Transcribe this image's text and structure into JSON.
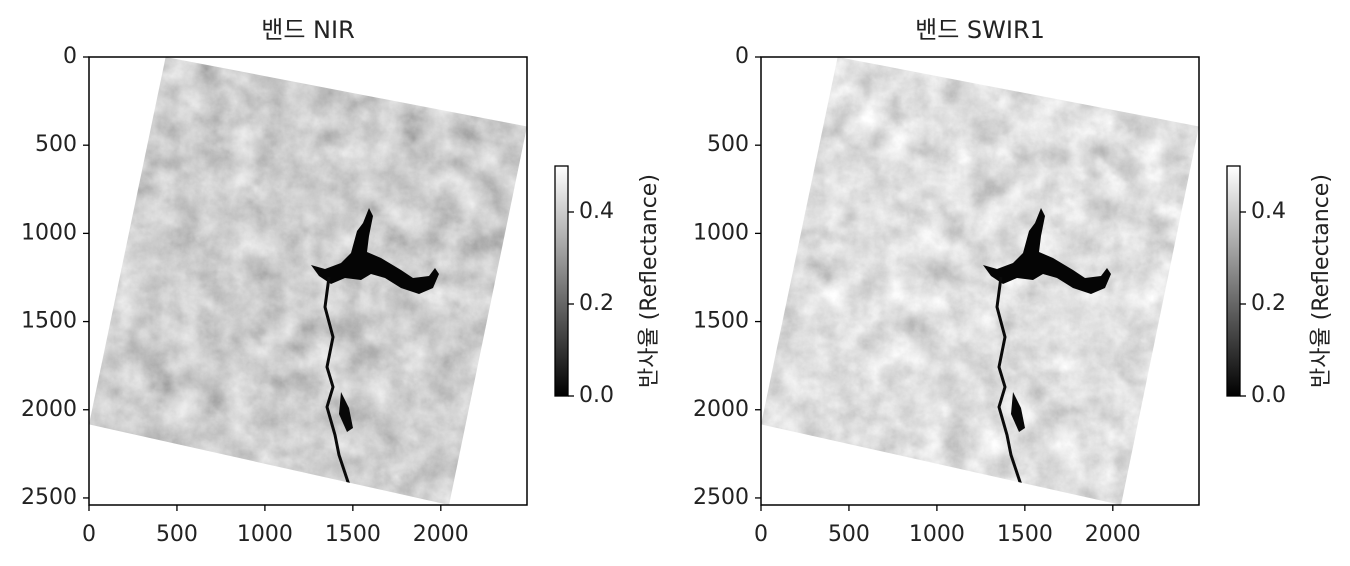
{
  "chart_data": [
    {
      "type": "image",
      "title": "밴드 NIR",
      "xlim": [
        0,
        2490
      ],
      "ylim": [
        2540,
        0
      ],
      "xticks": [
        0,
        500,
        1000,
        1500,
        2000
      ],
      "yticks": [
        0,
        500,
        1000,
        1500,
        2000,
        2500
      ],
      "colorbar": {
        "label": "반사율 (Reflectance)",
        "lim": [
          0,
          0.5
        ],
        "cmap": [
          "#000000",
          "#ffffff"
        ],
        "ticks": [
          {
            "value": 0,
            "label": "0.0"
          },
          0.2,
          0.4
        ]
      }
    },
    {
      "type": "image",
      "title": "밴드 SWIR1",
      "xlim": [
        0,
        2490
      ],
      "ylim": [
        2540,
        0
      ],
      "xticks": [
        0,
        500,
        1000,
        1500,
        2000
      ],
      "yticks": [
        0,
        500,
        1000,
        1500,
        2000,
        2500
      ],
      "colorbar": {
        "label": "반사율 (Reflectance)",
        "lim": [
          0,
          0.5
        ],
        "cmap": [
          "#000000",
          "#ffffff"
        ],
        "ticks": [
          {
            "value": 0,
            "label": "0.0"
          },
          0.2,
          0.4
        ]
      }
    }
  ]
}
